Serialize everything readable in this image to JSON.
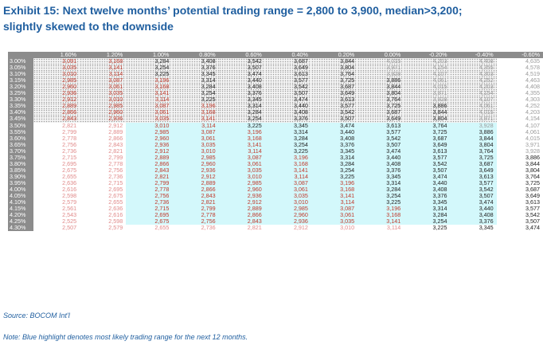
{
  "title_line1": "Exhibit 15: Next twelve months’ potential trading range = 2,800 to 3,900, median>3,200;",
  "title_line2": "slightly skewed to the downside",
  "source": "Source: BOCOM Int'l",
  "note": "Note: Blue highlight denotes most likely trading range for the next 12 months.",
  "colors": {
    "title": "#1f5e9f",
    "header_bg": "#8c8c8c",
    "highlight_bg": "#d3f8fb",
    "red_text": "#c0392b",
    "black_text": "#222222",
    "gray_text": "#9a9a9a",
    "pink_text": "#e08a8a"
  },
  "chart_data": {
    "type": "table",
    "col_headers": [
      "1.60%",
      "1.20%",
      "1.00%",
      "0.80%",
      "0.60%",
      "0.40%",
      "0.20%",
      "0.00%",
      "-0.20%",
      "-0.40%",
      "-0.60%"
    ],
    "row_headers": [
      "3.00%",
      "3.05%",
      "3.10%",
      "3.15%",
      "3.20%",
      "3.25%",
      "3.30%",
      "3.35%",
      "3.40%",
      "3.45%",
      "3.50%",
      "3.55%",
      "3.60%",
      "3.65%",
      "3.70%",
      "3.75%",
      "3.80%",
      "3.85%",
      "3.90%",
      "3.95%",
      "4.00%",
      "4.05%",
      "4.10%",
      "4.15%",
      "4.20%",
      "4.25%",
      "4.30%"
    ],
    "values": [
      [
        "3,091",
        "3,168",
        "3,284",
        "3,408",
        "3,542",
        "3,687",
        "3,844",
        "4,015",
        "4,203",
        "4,408",
        "4,635"
      ],
      [
        "3,035",
        "3,141",
        "3,254",
        "3,376",
        "3,507",
        "3,649",
        "3,804",
        "3,971",
        "4,154",
        "4,355",
        "4,578"
      ],
      [
        "3,010",
        "3,114",
        "3,225",
        "3,345",
        "3,474",
        "3,613",
        "3,764",
        "3,928",
        "4,107",
        "4,303",
        "4,519"
      ],
      [
        "2,985",
        "3,087",
        "3,196",
        "3,314",
        "3,440",
        "3,577",
        "3,725",
        "3,886",
        "4,061",
        "4,252",
        "4,463"
      ],
      [
        "2,960",
        "3,061",
        "3,168",
        "3,284",
        "3,408",
        "3,542",
        "3,687",
        "3,844",
        "4,015",
        "4,203",
        "4,408"
      ],
      [
        "2,936",
        "3,035",
        "3,141",
        "3,254",
        "3,376",
        "3,507",
        "3,649",
        "3,804",
        "3,971",
        "4,154",
        "4,355"
      ],
      [
        "2,912",
        "3,010",
        "3,114",
        "3,225",
        "3,345",
        "3,474",
        "3,613",
        "3,764",
        "3,928",
        "4,107",
        "4,303"
      ],
      [
        "2,889",
        "2,985",
        "3,087",
        "3,196",
        "3,314",
        "3,440",
        "3,577",
        "3,725",
        "3,886",
        "4,061",
        "4,252"
      ],
      [
        "2,866",
        "2,960",
        "3,061",
        "3,168",
        "3,284",
        "3,408",
        "3,542",
        "3,687",
        "3,844",
        "4,015",
        "4,203"
      ],
      [
        "2,843",
        "2,936",
        "3,035",
        "3,141",
        "3,254",
        "3,376",
        "3,507",
        "3,649",
        "3,804",
        "3,971",
        "4,154"
      ],
      [
        "2,821",
        "2,912",
        "3,010",
        "3,114",
        "3,225",
        "3,345",
        "3,474",
        "3,613",
        "3,764",
        "3,928",
        "4,107"
      ],
      [
        "2,799",
        "2,889",
        "2,985",
        "3,087",
        "3,196",
        "3,314",
        "3,440",
        "3,577",
        "3,725",
        "3,886",
        "4,061"
      ],
      [
        "2,778",
        "2,866",
        "2,960",
        "3,061",
        "3,168",
        "3,284",
        "3,408",
        "3,542",
        "3,687",
        "3,844",
        "4,015"
      ],
      [
        "2,756",
        "2,843",
        "2,936",
        "3,035",
        "3,141",
        "3,254",
        "3,376",
        "3,507",
        "3,649",
        "3,804",
        "3,971"
      ],
      [
        "2,736",
        "2,821",
        "2,912",
        "3,010",
        "3,114",
        "3,225",
        "3,345",
        "3,474",
        "3,613",
        "3,764",
        "3,928"
      ],
      [
        "2,715",
        "2,799",
        "2,889",
        "2,985",
        "3,087",
        "3,196",
        "3,314",
        "3,440",
        "3,577",
        "3,725",
        "3,886"
      ],
      [
        "2,695",
        "2,778",
        "2,866",
        "2,960",
        "3,061",
        "3,168",
        "3,284",
        "3,408",
        "3,542",
        "3,687",
        "3,844"
      ],
      [
        "2,675",
        "2,756",
        "2,843",
        "2,936",
        "3,035",
        "3,141",
        "3,254",
        "3,376",
        "3,507",
        "3,649",
        "3,804"
      ],
      [
        "2,655",
        "2,736",
        "2,821",
        "2,912",
        "3,010",
        "3,114",
        "3,225",
        "3,345",
        "3,474",
        "3,613",
        "3,764"
      ],
      [
        "2,636",
        "2,715",
        "2,799",
        "2,889",
        "2,985",
        "3,087",
        "3,196",
        "3,314",
        "3,440",
        "3,577",
        "3,725"
      ],
      [
        "2,616",
        "2,695",
        "2,778",
        "2,866",
        "2,960",
        "3,061",
        "3,168",
        "3,284",
        "3,408",
        "3,542",
        "3,687"
      ],
      [
        "2,598",
        "2,675",
        "2,756",
        "2,843",
        "2,936",
        "3,035",
        "3,141",
        "3,254",
        "3,376",
        "3,507",
        "3,649"
      ],
      [
        "2,579",
        "2,655",
        "2,736",
        "2,821",
        "2,912",
        "3,010",
        "3,114",
        "3,225",
        "3,345",
        "3,474",
        "3,613"
      ],
      [
        "2,561",
        "2,636",
        "2,715",
        "2,799",
        "2,889",
        "2,985",
        "3,087",
        "3,196",
        "3,314",
        "3,440",
        "3,577"
      ],
      [
        "2,543",
        "2,616",
        "2,695",
        "2,778",
        "2,866",
        "2,960",
        "3,061",
        "3,168",
        "3,284",
        "3,408",
        "3,542"
      ],
      [
        "2,525",
        "2,598",
        "2,675",
        "2,756",
        "2,843",
        "2,936",
        "3,035",
        "3,141",
        "3,254",
        "3,376",
        "3,507"
      ],
      [
        "2,507",
        "2,579",
        "2,655",
        "2,736",
        "2,821",
        "2,912",
        "3,010",
        "3,114",
        "3,225",
        "3,345",
        "3,474"
      ]
    ],
    "highlight": {
      "row_start": 10,
      "row_end": 25,
      "col_start": 2,
      "col_end": 9
    },
    "dotted_region": {
      "row_start": 0,
      "row_end": 9,
      "col_start": 0,
      "col_end": 9
    },
    "text_color_rules": {
      "below_3200": "red",
      "3200_to_3900": "black",
      "above_3900": "gray",
      "outside_highlight_below_3200": "pink"
    }
  }
}
